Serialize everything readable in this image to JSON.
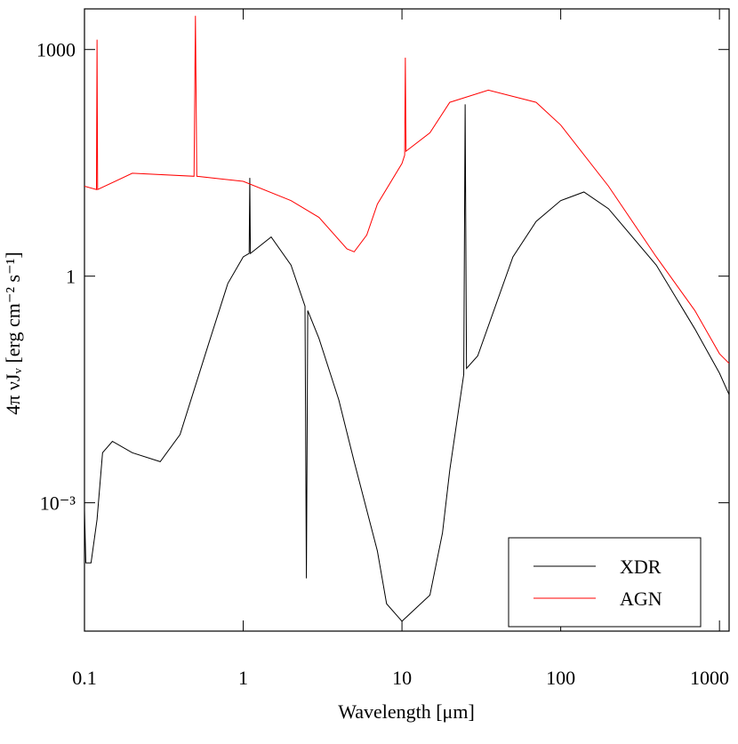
{
  "chart_data": {
    "type": "line",
    "xlabel": "Wavelength [μm]",
    "ylabel": "4π νJᵥ [erg cm⁻² s⁻¹]",
    "xscale": "log",
    "yscale": "log",
    "xlim": [
      0.1,
      1150
    ],
    "ylim": [
      2e-05,
      3450
    ],
    "xticks": [
      0.1,
      1,
      10,
      100,
      1000
    ],
    "yticks": [
      {
        "value": 0.001,
        "label": "10⁻³"
      },
      1,
      1000
    ],
    "legend": "lower right",
    "series": [
      {
        "name": "XDR",
        "color": "#000000",
        "x": [
          0.1,
          0.102,
          0.11,
          0.12,
          0.13,
          0.15,
          0.2,
          0.3,
          0.4,
          0.6,
          0.8,
          1,
          1.09,
          1.1,
          1.11,
          1.5,
          2,
          2.45,
          2.5,
          2.55,
          3,
          4,
          5,
          7,
          8,
          10,
          15,
          18,
          20,
          24.5,
          25,
          25.5,
          30,
          50,
          70,
          100,
          140,
          200,
          400,
          700,
          1000,
          1150
        ],
        "values": [
          0.0008,
          0.00016,
          0.00016,
          0.0006,
          0.0046,
          0.0065,
          0.0046,
          0.0035,
          0.008,
          0.12,
          0.8,
          1.8,
          2,
          20,
          2,
          3.3,
          1.4,
          0.4,
          0.0001,
          0.35,
          0.15,
          0.023,
          0.0035,
          0.00023,
          4.6e-05,
          2.7e-05,
          6e-05,
          0.0004,
          0.0027,
          0.05,
          188,
          0.06,
          0.088,
          1.8,
          5.3,
          10,
          13,
          7.8,
          1.4,
          0.2,
          0.052,
          0.027
        ]
      },
      {
        "name": "AGN",
        "color": "#ff0000",
        "x": [
          0.1,
          0.119,
          0.12,
          0.121,
          0.2,
          0.49,
          0.5,
          0.51,
          1,
          2,
          3,
          4.5,
          5,
          6,
          7,
          10,
          10.4,
          10.5,
          10.6,
          15,
          20,
          35,
          70,
          100,
          200,
          400,
          700,
          1000,
          1150
        ],
        "values": [
          15.5,
          14,
          1350,
          14,
          23,
          21,
          2800,
          21,
          18,
          10,
          6,
          2.3,
          2.1,
          3.5,
          9,
          31,
          40,
          780,
          45,
          79,
          200,
          290,
          200,
          100,
          15.5,
          1.8,
          0.35,
          0.094,
          0.07
        ]
      }
    ]
  }
}
